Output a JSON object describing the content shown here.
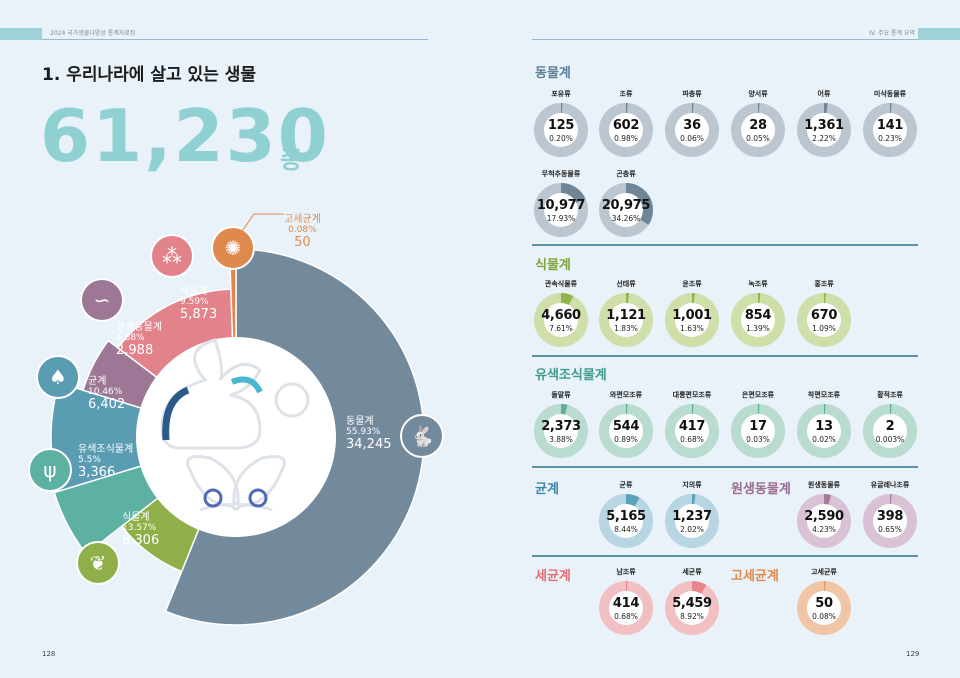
{
  "header": {
    "left_text": "2024 국가생물다양성 통계자료집",
    "right_text": "IV. 주요 통계 요약"
  },
  "left": {
    "title": "1. 우리나라에 살고 있는 생물",
    "total": "61,230",
    "unit": "종",
    "page_number": "128",
    "colors": {
      "animal": "#73899c",
      "plant": "#8faf49",
      "chromista": "#5db1a3",
      "fungi": "#5a9db3",
      "protozoa": "#9c7896",
      "bacteria": "#e2828a",
      "archaea": "#e0894e"
    },
    "segments": [
      {
        "name": "동물계",
        "percent": "55.93%",
        "count": "34,245",
        "icon": "rabbit-icon"
      },
      {
        "name": "식물계",
        "percent": "13.57%",
        "count": "8,306",
        "icon": "leaf-icon"
      },
      {
        "name": "유색조식물계",
        "percent": "5.5%",
        "count": "3,366",
        "icon": "seaweed-icon"
      },
      {
        "name": "균계",
        "percent": "10.46%",
        "count": "6,402",
        "icon": "mushroom-icon"
      },
      {
        "name": "원생동물계",
        "percent": "4.88%",
        "count": "2,988",
        "icon": "protozoa-icon"
      },
      {
        "name": "세균계",
        "percent": "9.59%",
        "count": "5,873",
        "icon": "bacteria-icon"
      },
      {
        "name": "고세균계",
        "percent": "0.08%",
        "count": "50",
        "icon": "virus-icon"
      }
    ]
  },
  "right": {
    "page_number": "129",
    "sections": {
      "animal": {
        "title": "동물계",
        "items": [
          {
            "name": "포유류",
            "count": "125",
            "percent": "0.20%"
          },
          {
            "name": "조류",
            "count": "602",
            "percent": "0.98%"
          },
          {
            "name": "파충류",
            "count": "36",
            "percent": "0.06%"
          },
          {
            "name": "양서류",
            "count": "28",
            "percent": "0.05%"
          },
          {
            "name": "어류",
            "count": "1,361",
            "percent": "2.22%"
          },
          {
            "name": "미삭동물류",
            "count": "141",
            "percent": "0.23%"
          },
          {
            "name": "무척추동물류",
            "count": "10,977",
            "percent": "17.93%"
          },
          {
            "name": "곤충류",
            "count": "20,975",
            "percent": "34.26%"
          }
        ]
      },
      "plant": {
        "title": "식물계",
        "items": [
          {
            "name": "관속식물류",
            "count": "4,660",
            "percent": "7.61%"
          },
          {
            "name": "선태류",
            "count": "1,121",
            "percent": "1.83%"
          },
          {
            "name": "윤조류",
            "count": "1,001",
            "percent": "1.63%"
          },
          {
            "name": "녹조류",
            "count": "854",
            "percent": "1.39%"
          },
          {
            "name": "홍조류",
            "count": "670",
            "percent": "1.09%"
          }
        ]
      },
      "chromista": {
        "title": "유색조식물계",
        "items": [
          {
            "name": "돌말류",
            "count": "2,373",
            "percent": "3.88%"
          },
          {
            "name": "와편모조류",
            "count": "544",
            "percent": "0.89%"
          },
          {
            "name": "대롱편모조류",
            "count": "417",
            "percent": "0.68%"
          },
          {
            "name": "은편모조류",
            "count": "17",
            "percent": "0.03%"
          },
          {
            "name": "착편모조류",
            "count": "13",
            "percent": "0.02%"
          },
          {
            "name": "황적조류",
            "count": "2",
            "percent": "0.003%"
          }
        ]
      },
      "fungi": {
        "title": "균계",
        "items": [
          {
            "name": "균류",
            "count": "5,165",
            "percent": "8.44%"
          },
          {
            "name": "지의류",
            "count": "1,237",
            "percent": "2.02%"
          }
        ]
      },
      "protozoa": {
        "title": "원생동물계",
        "items": [
          {
            "name": "원생동물류",
            "count": "2,590",
            "percent": "4.23%"
          },
          {
            "name": "유글레나조류",
            "count": "398",
            "percent": "0.65%"
          }
        ]
      },
      "bacteria": {
        "title": "세균계",
        "items": [
          {
            "name": "남조류",
            "count": "414",
            "percent": "0.68%"
          },
          {
            "name": "세균류",
            "count": "5,459",
            "percent": "8.92%"
          }
        ]
      },
      "archaea": {
        "title": "고세균계",
        "items": [
          {
            "name": "고세균류",
            "count": "50",
            "percent": "0.08%"
          }
        ]
      }
    }
  }
}
